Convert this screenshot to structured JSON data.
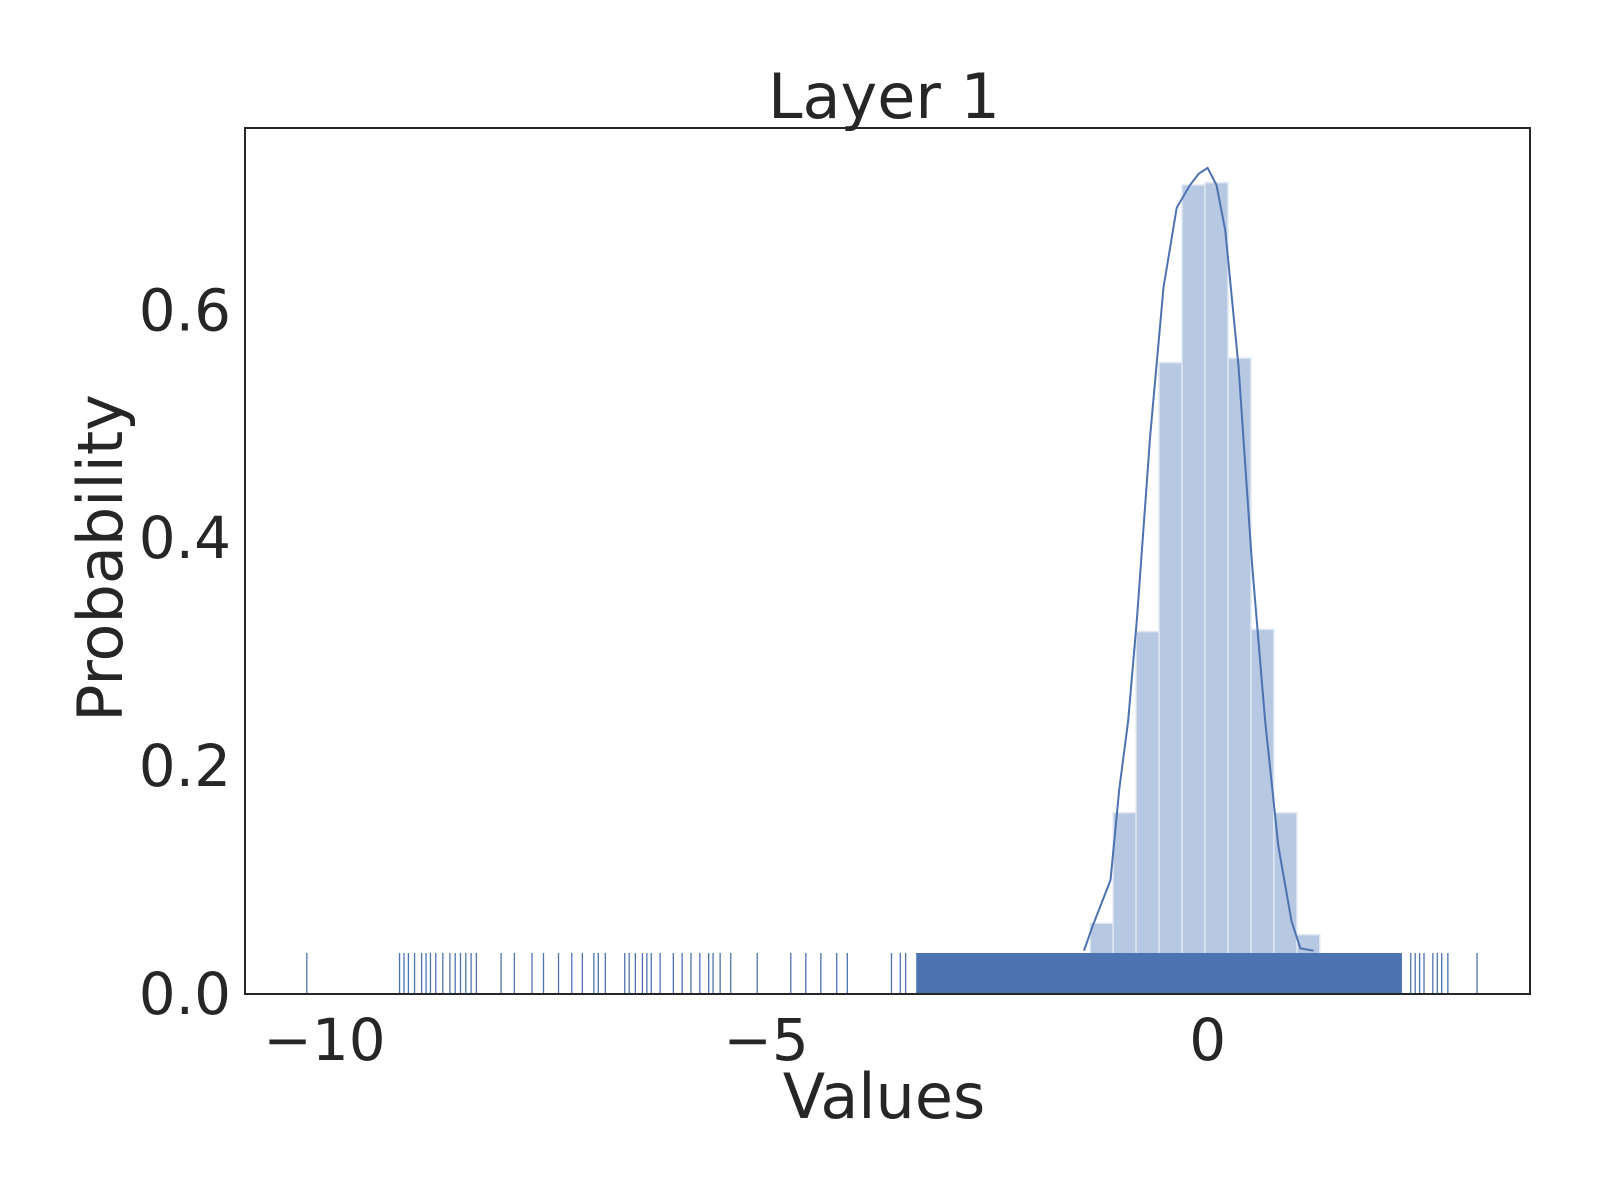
{
  "chart_data": {
    "type": "histogram",
    "title": "Layer 1",
    "xlabel": "Values",
    "ylabel": "Probability",
    "xlim": [
      -10.9,
      3.65
    ],
    "ylim": [
      0,
      0.76
    ],
    "xticks": [
      {
        "value": -10,
        "label": "−10"
      },
      {
        "value": -5,
        "label": "−5"
      },
      {
        "value": 0,
        "label": "0"
      }
    ],
    "yticks": [
      {
        "value": 0.0,
        "label": "0.0"
      },
      {
        "value": 0.2,
        "label": "0.2"
      },
      {
        "value": 0.4,
        "label": "0.4"
      },
      {
        "value": 0.6,
        "label": "0.6"
      }
    ],
    "grid": false,
    "colors": {
      "bar_fill": "#b7c8e2",
      "bar_edge": "#dfe7f2",
      "kde": "#4c72b0",
      "rug": "#4c72b0",
      "axes": "#262626"
    },
    "histogram": {
      "bin_edges": [
        -1.33,
        -1.07,
        -0.81,
        -0.55,
        -0.29,
        -0.03,
        0.23,
        0.49,
        0.75,
        1.01,
        1.27
      ],
      "density": [
        0.062,
        0.159,
        0.318,
        0.554,
        0.71,
        0.712,
        0.558,
        0.32,
        0.159,
        0.052
      ]
    },
    "kde": {
      "x": [
        -1.4,
        -1.3,
        -1.1,
        -1.0,
        -0.9,
        -0.8,
        -0.65,
        -0.5,
        -0.35,
        -0.2,
        -0.1,
        0.0,
        0.1,
        0.2,
        0.35,
        0.5,
        0.65,
        0.8,
        0.95,
        1.05,
        1.2
      ],
      "y": [
        0.038,
        0.06,
        0.1,
        0.18,
        0.24,
        0.33,
        0.49,
        0.62,
        0.69,
        0.71,
        0.72,
        0.725,
        0.71,
        0.67,
        0.55,
        0.38,
        0.24,
        0.13,
        0.064,
        0.04,
        0.038
      ]
    },
    "rug": {
      "height": 0.036,
      "dense_range": [
        -3.3,
        2.2
      ],
      "sparse_points": [
        -10.2,
        -9.15,
        -9.1,
        -9.05,
        -8.98,
        -8.9,
        -8.85,
        -8.8,
        -8.74,
        -8.66,
        -8.58,
        -8.52,
        -8.46,
        -8.4,
        -8.34,
        -8.28,
        -8.0,
        -7.85,
        -7.65,
        -7.52,
        -7.35,
        -7.2,
        -7.08,
        -6.95,
        -6.9,
        -6.82,
        -6.6,
        -6.55,
        -6.48,
        -6.4,
        -6.35,
        -6.3,
        -6.2,
        -6.05,
        -5.95,
        -5.85,
        -5.75,
        -5.65,
        -5.6,
        -5.52,
        -5.4,
        -5.1,
        -4.72,
        -4.55,
        -4.38,
        -4.2,
        -4.08,
        -3.58,
        -3.48,
        -3.42,
        2.3,
        2.35,
        2.4,
        2.45,
        2.55,
        2.6,
        2.65,
        2.72,
        3.05
      ]
    }
  }
}
